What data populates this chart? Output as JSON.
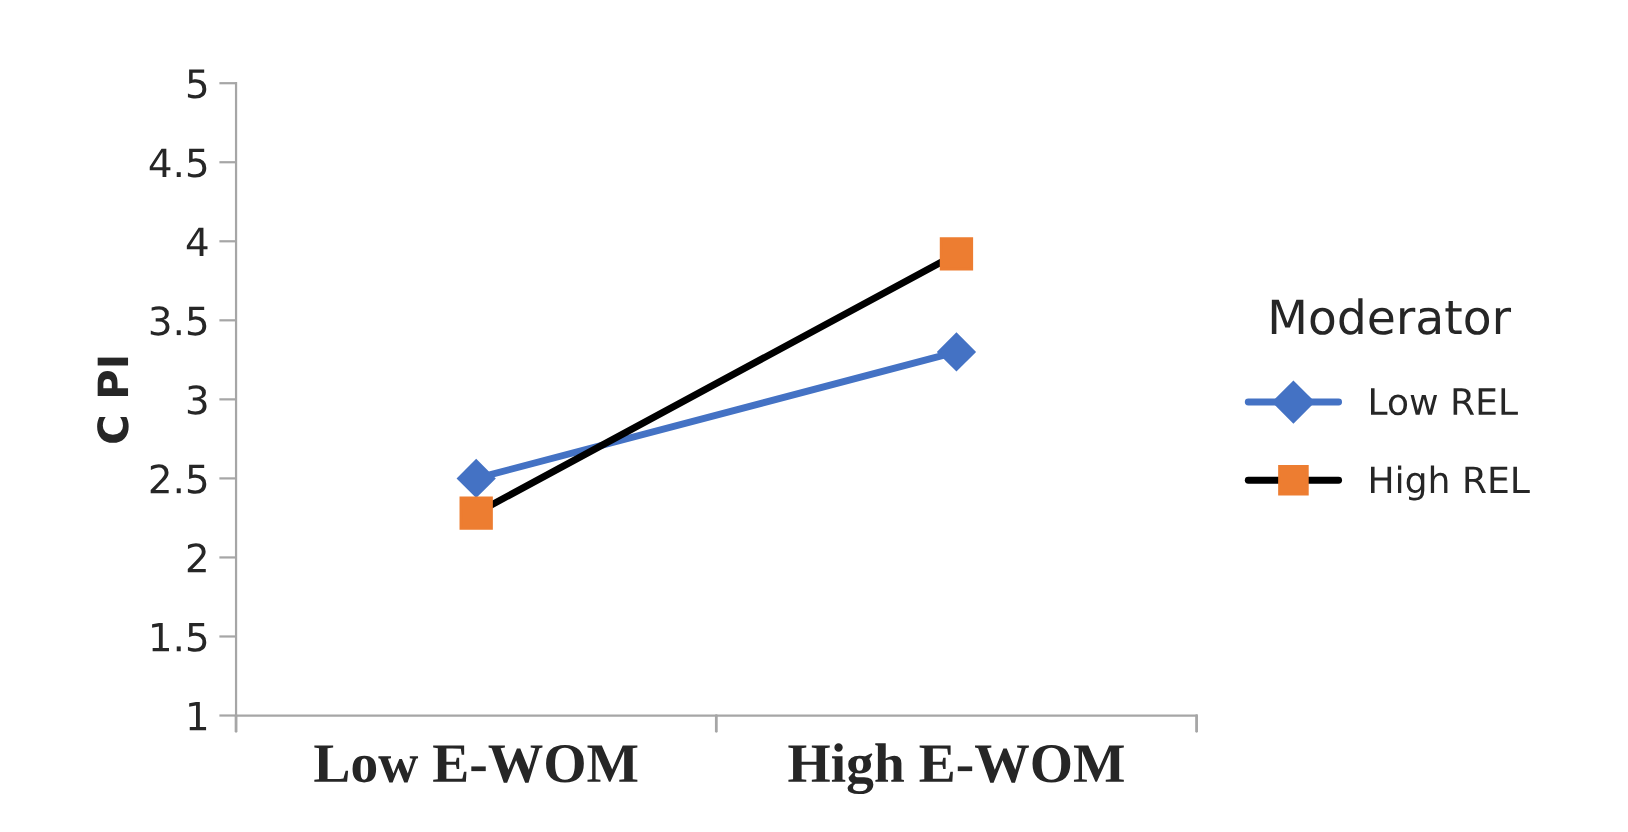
{
  "chart_data": {
    "type": "line",
    "ylabel": "C PI",
    "legend_title": "Moderator",
    "legend": "right",
    "categories": [
      "Low E-WOM",
      "High E-WOM"
    ],
    "series": [
      {
        "name": "Low REL",
        "color": "#4472c4",
        "colors": [
          "#4472c4",
          "#4472c4"
        ],
        "marker": "diamond",
        "values": [
          2.5,
          3.3
        ]
      },
      {
        "name": "High REL",
        "color": "#000000",
        "colors": [
          "#ed7d31",
          "#ed7d31"
        ],
        "marker": "square",
        "values": [
          2.28,
          3.92
        ]
      }
    ],
    "ylim": [
      1,
      5
    ],
    "yticks": [
      1,
      1.5,
      2,
      2.5,
      3,
      3.5,
      4,
      4.5,
      5
    ],
    "grid": false
  }
}
